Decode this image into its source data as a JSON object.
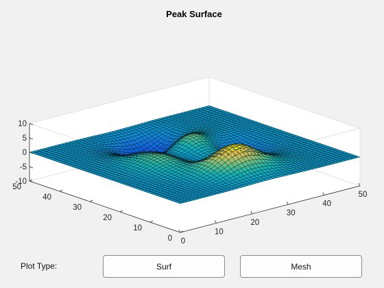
{
  "window": {
    "title": "Peak Surface"
  },
  "plot": {
    "title": "Peak Surface",
    "plot_type": "surf",
    "colormap": "parula",
    "grid_size": 50,
    "z_ticks": [
      "10",
      "5",
      "0",
      "-5",
      "-10"
    ],
    "x_ticks": [
      "0",
      "10",
      "20",
      "30",
      "40",
      "50"
    ],
    "y_ticks": [
      "0",
      "10",
      "20",
      "30",
      "40",
      "50"
    ],
    "colors": {
      "box": "#e2e2e2",
      "axes": "#262626",
      "edges": "#000000",
      "background": "#ffffff"
    }
  },
  "controls": {
    "label": "Plot Type:",
    "surf_label": "Surf",
    "mesh_label": "Mesh"
  },
  "chart_data": {
    "type": "surface",
    "title": "Peak Surface",
    "function": "peaks",
    "x_range": [
      0,
      50
    ],
    "y_range": [
      0,
      50
    ],
    "z_range": [
      -10,
      10
    ],
    "grid": "off",
    "box": "on"
  }
}
